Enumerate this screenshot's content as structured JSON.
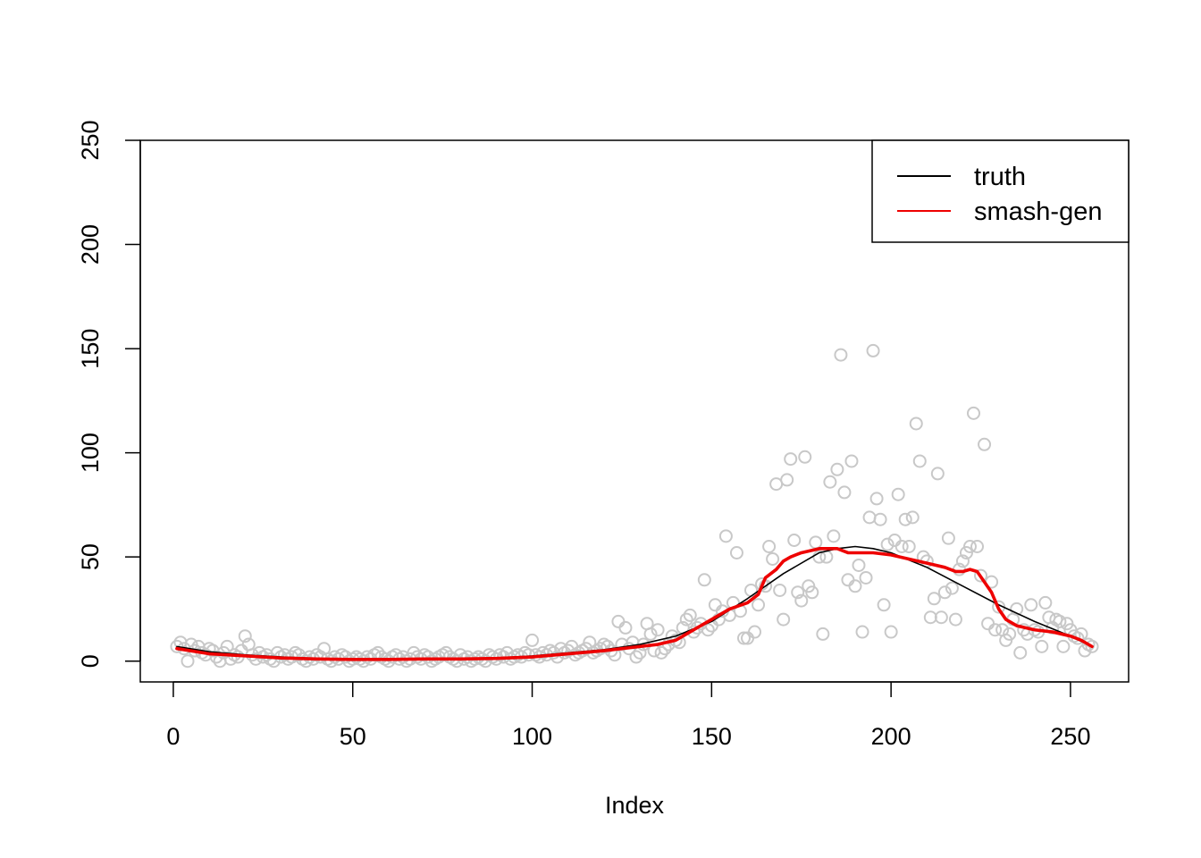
{
  "chart_data": {
    "type": "scatter",
    "xlabel": "Index",
    "ylabel": "",
    "title": "",
    "xlim": [
      -9.2,
      266.2
    ],
    "ylim": [
      -10,
      250
    ],
    "x_ticks": [
      0,
      50,
      100,
      150,
      200,
      250
    ],
    "y_ticks": [
      0,
      50,
      100,
      150,
      200,
      250
    ],
    "grid": false,
    "legend_position": "top-right",
    "colors": {
      "points": "#c8c8c8",
      "truth": "#000000",
      "smash": "#ee0000"
    },
    "points": {
      "x": [
        1,
        2,
        3,
        4,
        5,
        6,
        7,
        8,
        9,
        10,
        11,
        12,
        13,
        14,
        15,
        16,
        17,
        18,
        19,
        20,
        21,
        22,
        23,
        24,
        25,
        26,
        27,
        28,
        29,
        30,
        31,
        32,
        33,
        34,
        35,
        36,
        37,
        38,
        39,
        40,
        41,
        42,
        43,
        44,
        45,
        46,
        47,
        48,
        49,
        50,
        51,
        52,
        53,
        54,
        55,
        56,
        57,
        58,
        59,
        60,
        61,
        62,
        63,
        64,
        65,
        66,
        67,
        68,
        69,
        70,
        71,
        72,
        73,
        74,
        75,
        76,
        77,
        78,
        79,
        80,
        81,
        82,
        83,
        84,
        85,
        86,
        87,
        88,
        89,
        90,
        91,
        92,
        93,
        94,
        95,
        96,
        97,
        98,
        99,
        100,
        101,
        102,
        103,
        104,
        105,
        106,
        107,
        108,
        109,
        110,
        111,
        112,
        113,
        114,
        115,
        116,
        117,
        118,
        119,
        120,
        121,
        122,
        123,
        124,
        125,
        126,
        127,
        128,
        129,
        130,
        131,
        132,
        133,
        134,
        135,
        136,
        137,
        138,
        139,
        140,
        141,
        142,
        143,
        144,
        145,
        146,
        147,
        148,
        149,
        150,
        151,
        152,
        153,
        154,
        155,
        156,
        157,
        158,
        159,
        160,
        161,
        162,
        163,
        164,
        165,
        166,
        167,
        168,
        169,
        170,
        171,
        172,
        173,
        174,
        175,
        176,
        177,
        178,
        179,
        180,
        181,
        182,
        183,
        184,
        185,
        186,
        187,
        188,
        189,
        190,
        191,
        192,
        193,
        194,
        195,
        196,
        197,
        198,
        199,
        200,
        201,
        202,
        203,
        204,
        205,
        206,
        207,
        208,
        209,
        210,
        211,
        212,
        213,
        214,
        215,
        216,
        217,
        218,
        219,
        220,
        221,
        222,
        223,
        224,
        225,
        226,
        227,
        228,
        229,
        230,
        231,
        232,
        233,
        234,
        235,
        236,
        237,
        238,
        239,
        240,
        241,
        242,
        243,
        244,
        245,
        246,
        247,
        248,
        249,
        250,
        251,
        252,
        253,
        254,
        255,
        256
      ],
      "y": [
        7,
        9,
        6,
        0,
        8,
        5,
        7,
        4,
        3,
        6,
        5,
        2,
        0,
        4,
        7,
        1,
        3,
        2,
        5,
        12,
        8,
        3,
        1,
        4,
        2,
        3,
        1,
        0,
        4,
        2,
        3,
        1,
        2,
        4,
        3,
        1,
        0,
        2,
        1,
        3,
        2,
        6,
        1,
        0,
        2,
        1,
        3,
        2,
        0,
        1,
        2,
        1,
        0,
        2,
        1,
        3,
        4,
        2,
        1,
        0,
        2,
        3,
        1,
        2,
        0,
        1,
        4,
        2,
        1,
        3,
        2,
        0,
        1,
        2,
        3,
        4,
        2,
        1,
        0,
        3,
        1,
        2,
        0,
        1,
        2,
        1,
        0,
        3,
        2,
        1,
        3,
        2,
        4,
        1,
        2,
        3,
        2,
        4,
        3,
        10,
        3,
        2,
        4,
        3,
        5,
        4,
        2,
        6,
        4,
        5,
        7,
        3,
        4,
        5,
        6,
        9,
        4,
        5,
        6,
        8,
        7,
        5,
        3,
        19,
        8,
        16,
        6,
        9,
        2,
        4,
        8,
        18,
        13,
        5,
        15,
        4,
        6,
        8,
        12,
        10,
        9,
        16,
        20,
        22,
        14,
        16,
        18,
        39,
        15,
        17,
        27,
        20,
        24,
        60,
        22,
        28,
        52,
        24,
        11,
        11,
        34,
        14,
        27,
        37,
        36,
        55,
        49,
        85,
        34,
        20,
        87,
        97,
        58,
        33,
        29,
        98,
        36,
        33,
        57,
        50,
        13,
        50,
        86,
        60,
        92,
        147,
        81,
        39,
        96,
        36,
        46,
        14,
        40,
        69,
        149,
        78,
        68,
        27,
        56,
        14,
        58,
        80,
        55,
        68,
        55,
        69,
        114,
        96,
        50,
        48,
        21,
        30,
        90,
        21,
        33,
        59,
        35,
        20,
        44,
        48,
        52,
        55,
        119,
        55,
        41,
        104,
        18,
        38,
        15,
        26,
        15,
        10,
        13,
        20,
        25,
        4,
        15,
        13,
        27,
        15,
        14,
        7,
        28,
        21,
        16,
        20,
        19,
        7,
        18,
        15,
        12,
        11,
        13,
        5,
        8,
        7
      ]
    },
    "series": [
      {
        "name": "truth",
        "x": [
          1,
          10,
          20,
          30,
          40,
          50,
          60,
          70,
          80,
          90,
          100,
          110,
          120,
          130,
          140,
          150,
          160,
          170,
          180,
          185,
          190,
          195,
          200,
          210,
          220,
          230,
          240,
          250,
          256
        ],
        "values": [
          7,
          4.5,
          3,
          2,
          1.3,
          1,
          1,
          1,
          1.2,
          1.5,
          2.5,
          4,
          5.5,
          8,
          12,
          19,
          30,
          42,
          52,
          54,
          55,
          54,
          52,
          45,
          36,
          27,
          19,
          12,
          7
        ]
      },
      {
        "name": "smash-gen",
        "x": [
          1,
          10,
          20,
          30,
          40,
          50,
          60,
          70,
          80,
          90,
          100,
          110,
          120,
          130,
          135,
          140,
          145,
          150,
          155,
          160,
          163,
          165,
          168,
          170,
          172,
          175,
          180,
          185,
          188,
          190,
          195,
          200,
          205,
          210,
          215,
          218,
          220,
          222,
          224,
          226,
          228,
          230,
          232,
          235,
          240,
          245,
          250,
          253,
          256
        ],
        "values": [
          6,
          3.5,
          2.5,
          1.5,
          1,
          0.8,
          0.8,
          1,
          1,
          1.3,
          2,
          3.5,
          5,
          7,
          8,
          10,
          15,
          20,
          25,
          28,
          32,
          40,
          44,
          48,
          50,
          52,
          54,
          54,
          52,
          52,
          52,
          51,
          49,
          47,
          45,
          43,
          43,
          44,
          43,
          38,
          33,
          25,
          20,
          17,
          15,
          14,
          12,
          10,
          7
        ]
      }
    ]
  }
}
